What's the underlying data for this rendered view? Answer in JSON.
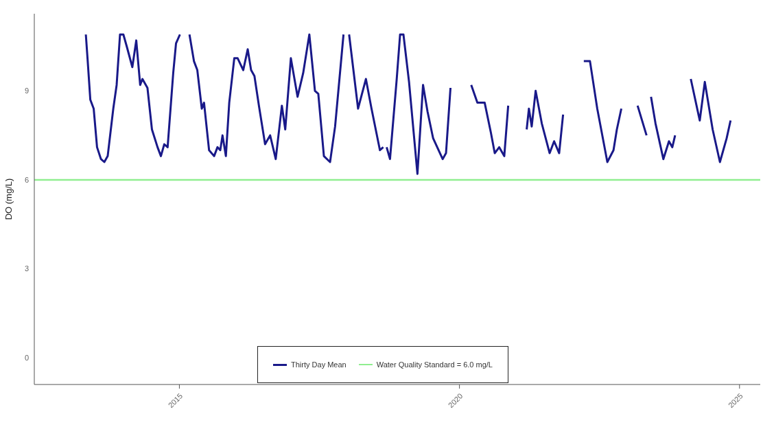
{
  "chart_data": {
    "type": "line",
    "ylabel": "DO (mg/L)",
    "x": [
      2013.33,
      2013.36,
      2013.41,
      2013.47,
      2013.53,
      2013.6,
      2013.66,
      2013.72,
      2013.82,
      2013.88,
      2013.94,
      2014.0,
      2014.06,
      2014.16,
      2014.23,
      2014.3,
      2014.34,
      2014.43,
      2014.51,
      2014.61,
      2014.67,
      2014.73,
      2014.79,
      2014.89,
      2014.94,
      2015.01,
      2015.1,
      2015.18,
      2015.26,
      2015.32,
      2015.4,
      2015.44,
      2015.53,
      2015.62,
      2015.68,
      2015.73,
      2015.77,
      2015.83,
      2015.89,
      2015.98,
      2016.04,
      2016.14,
      2016.22,
      2016.28,
      2016.34,
      2016.42,
      2016.53,
      2016.62,
      2016.72,
      2016.83,
      2016.89,
      2016.99,
      2017.11,
      2017.21,
      2017.32,
      2017.42,
      2017.48,
      2017.58,
      2017.69,
      2017.78,
      2017.93,
      2017.98,
      2018.03,
      2018.19,
      2018.33,
      2018.43,
      2018.58,
      2018.64,
      2018.67,
      2018.7,
      2018.76,
      2018.88,
      2018.94,
      2019.0,
      2019.1,
      2019.25,
      2019.35,
      2019.43,
      2019.53,
      2019.7,
      2019.76,
      2019.84,
      2020.0,
      2020.21,
      2020.32,
      2020.45,
      2020.56,
      2020.63,
      2020.71,
      2020.8,
      2020.87,
      2021.1,
      2021.2,
      2021.24,
      2021.29,
      2021.36,
      2021.47,
      2021.61,
      2021.69,
      2021.78,
      2021.85,
      2022.0,
      2022.22,
      2022.33,
      2022.46,
      2022.64,
      2022.75,
      2022.81,
      2022.89,
      2023.0,
      2023.18,
      2023.34,
      2023.37,
      2023.42,
      2023.5,
      2023.64,
      2023.74,
      2023.8,
      2023.85,
      2024.0,
      2024.13,
      2024.29,
      2024.38,
      2024.52,
      2024.65,
      2024.77,
      2024.84
    ],
    "series": [
      {
        "name": "Thirty Day Mean",
        "color": "#191989",
        "values": [
          10.9,
          10.1,
          8.7,
          8.4,
          7.1,
          6.7,
          6.6,
          6.8,
          8.4,
          9.2,
          10.9,
          10.9,
          10.5,
          9.8,
          10.7,
          9.2,
          9.4,
          9.1,
          7.7,
          7.1,
          6.8,
          7.2,
          7.1,
          9.6,
          10.6,
          10.9,
          null,
          10.9,
          10.0,
          9.7,
          8.4,
          8.6,
          7.0,
          6.8,
          7.1,
          7.0,
          7.5,
          6.8,
          8.6,
          10.1,
          10.1,
          9.7,
          10.4,
          9.7,
          9.5,
          8.5,
          7.2,
          7.5,
          6.7,
          8.5,
          7.7,
          10.1,
          8.8,
          9.6,
          10.9,
          9.0,
          8.9,
          6.8,
          6.6,
          7.8,
          10.9,
          null,
          10.9,
          8.4,
          9.4,
          8.4,
          7.0,
          7.1,
          null,
          7.1,
          6.7,
          9.4,
          10.9,
          10.9,
          9.3,
          6.2,
          9.2,
          8.3,
          7.4,
          6.7,
          6.9,
          9.1,
          null,
          9.2,
          8.6,
          8.6,
          7.6,
          6.9,
          7.1,
          6.8,
          8.5,
          null,
          7.7,
          8.4,
          7.8,
          9.0,
          7.9,
          6.9,
          7.3,
          6.9,
          8.2,
          null,
          10.0,
          10.0,
          8.4,
          6.6,
          7.0,
          7.7,
          8.4,
          null,
          8.5,
          7.5,
          null,
          8.8,
          7.9,
          6.7,
          7.3,
          7.1,
          7.5,
          null,
          9.4,
          8.0,
          9.3,
          7.7,
          6.6,
          7.4,
          8.0
        ]
      }
    ],
    "xlim": [
      2012.41,
      2025.37
    ],
    "xticks": [
      2015,
      2020,
      2025
    ],
    "ylim": [
      -0.9,
      11.6
    ],
    "yticks": [
      0,
      3,
      6,
      9
    ],
    "ref_lines": [
      {
        "axis": "y",
        "value": 6,
        "label": "Water Quality Standard = 6.0 mg/L",
        "color": "#90ee90"
      }
    ],
    "grid": false,
    "legend": "bottom",
    "marker": "none",
    "line_style": "solid"
  }
}
